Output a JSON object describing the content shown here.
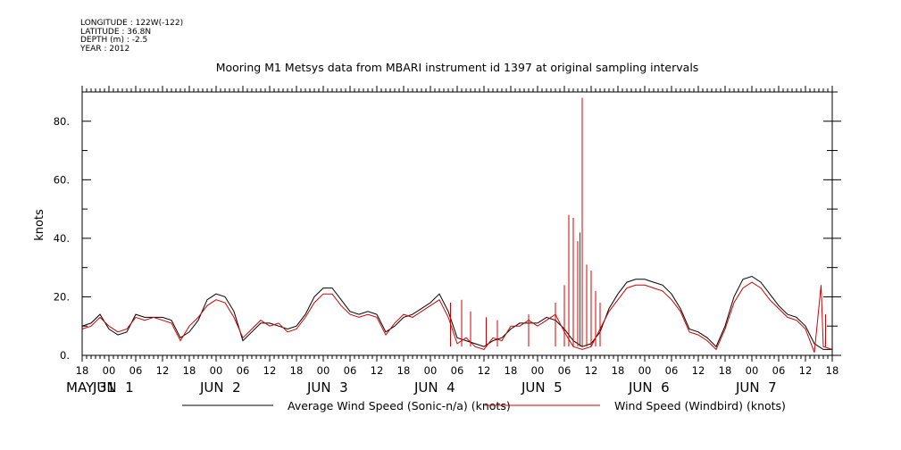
{
  "meta": {
    "longitude": "LONGITUDE : 122W(-122)",
    "latitude": "LATITUDE : 36.8N",
    "depth": "DEPTH (m) : -2.5",
    "year": "YEAR : 2012"
  },
  "chart_data": {
    "type": "line",
    "title": "Mooring M1 Metsys data from MBARI instrument id 1397 at original sampling intervals",
    "ylabel": "knots",
    "xlabel": "",
    "ylim": [
      0,
      90
    ],
    "y_ticks": [
      0,
      20,
      40,
      60,
      80
    ],
    "y_tick_labels": [
      "0.",
      "20.",
      "40.",
      "60.",
      "80."
    ],
    "x_range": [
      "2012-05-31T18:00",
      "2012-06-07T18:00"
    ],
    "hour_ticks": [
      {
        "t": "2012-05-31T18:00",
        "label": "18"
      },
      {
        "t": "2012-06-01T00:00",
        "label": "00"
      },
      {
        "t": "2012-06-01T06:00",
        "label": "06"
      },
      {
        "t": "2012-06-01T12:00",
        "label": "12"
      },
      {
        "t": "2012-06-01T18:00",
        "label": "18"
      },
      {
        "t": "2012-06-02T00:00",
        "label": "00"
      },
      {
        "t": "2012-06-02T06:00",
        "label": "06"
      },
      {
        "t": "2012-06-02T12:00",
        "label": "12"
      },
      {
        "t": "2012-06-02T18:00",
        "label": "18"
      },
      {
        "t": "2012-06-03T00:00",
        "label": "00"
      },
      {
        "t": "2012-06-03T06:00",
        "label": "06"
      },
      {
        "t": "2012-06-03T12:00",
        "label": "12"
      },
      {
        "t": "2012-06-03T18:00",
        "label": "18"
      },
      {
        "t": "2012-06-04T00:00",
        "label": "00"
      },
      {
        "t": "2012-06-04T06:00",
        "label": "06"
      },
      {
        "t": "2012-06-04T12:00",
        "label": "12"
      },
      {
        "t": "2012-06-04T18:00",
        "label": "18"
      },
      {
        "t": "2012-06-05T00:00",
        "label": "00"
      },
      {
        "t": "2012-06-05T06:00",
        "label": "06"
      },
      {
        "t": "2012-06-05T12:00",
        "label": "12"
      },
      {
        "t": "2012-06-05T18:00",
        "label": "18"
      },
      {
        "t": "2012-06-06T00:00",
        "label": "00"
      },
      {
        "t": "2012-06-06T06:00",
        "label": "06"
      },
      {
        "t": "2012-06-06T12:00",
        "label": "12"
      },
      {
        "t": "2012-06-06T18:00",
        "label": "18"
      },
      {
        "t": "2012-06-07T00:00",
        "label": "00"
      },
      {
        "t": "2012-06-07T06:00",
        "label": "06"
      },
      {
        "t": "2012-06-07T12:00",
        "label": "12"
      },
      {
        "t": "2012-06-07T18:00",
        "label": "18"
      }
    ],
    "day_labels": [
      {
        "t": "2012-05-31T18:00",
        "label": "MAY 31"
      },
      {
        "t": "2012-06-01T00:00",
        "label": "JUN  1"
      },
      {
        "t": "2012-06-02T00:00",
        "label": "JUN  2"
      },
      {
        "t": "2012-06-03T00:00",
        "label": "JUN  3"
      },
      {
        "t": "2012-06-04T00:00",
        "label": "JUN  4"
      },
      {
        "t": "2012-06-05T00:00",
        "label": "JUN  5"
      },
      {
        "t": "2012-06-06T00:00",
        "label": "JUN  6"
      },
      {
        "t": "2012-06-07T00:00",
        "label": "JUN  7"
      }
    ],
    "legend_placement": "bottom",
    "series": [
      {
        "name": "Average Wind Speed (Sonic-n/a) (knots)",
        "color": "#000000",
        "points": [
          [
            "2012-05-31T18:00",
            10
          ],
          [
            "2012-05-31T20:00",
            11
          ],
          [
            "2012-05-31T22:00",
            14
          ],
          [
            "2012-06-01T00:00",
            9
          ],
          [
            "2012-06-01T02:00",
            7
          ],
          [
            "2012-06-01T04:00",
            8
          ],
          [
            "2012-06-01T06:00",
            14
          ],
          [
            "2012-06-01T08:00",
            13
          ],
          [
            "2012-06-01T10:00",
            13
          ],
          [
            "2012-06-01T12:00",
            13
          ],
          [
            "2012-06-01T14:00",
            12
          ],
          [
            "2012-06-01T16:00",
            6
          ],
          [
            "2012-06-01T18:00",
            8
          ],
          [
            "2012-06-01T20:00",
            12
          ],
          [
            "2012-06-01T22:00",
            19
          ],
          [
            "2012-06-02T00:00",
            21
          ],
          [
            "2012-06-02T02:00",
            20
          ],
          [
            "2012-06-02T04:00",
            15
          ],
          [
            "2012-06-02T06:00",
            5
          ],
          [
            "2012-06-02T08:00",
            8
          ],
          [
            "2012-06-02T10:00",
            11
          ],
          [
            "2012-06-02T12:00",
            11
          ],
          [
            "2012-06-02T14:00",
            10
          ],
          [
            "2012-06-02T16:00",
            9
          ],
          [
            "2012-06-02T18:00",
            10
          ],
          [
            "2012-06-02T20:00",
            14
          ],
          [
            "2012-06-02T22:00",
            20
          ],
          [
            "2012-06-03T00:00",
            23
          ],
          [
            "2012-06-03T02:00",
            23
          ],
          [
            "2012-06-03T04:00",
            19
          ],
          [
            "2012-06-03T06:00",
            15
          ],
          [
            "2012-06-03T08:00",
            14
          ],
          [
            "2012-06-03T10:00",
            15
          ],
          [
            "2012-06-03T12:00",
            14
          ],
          [
            "2012-06-03T14:00",
            8
          ],
          [
            "2012-06-03T16:00",
            10
          ],
          [
            "2012-06-03T18:00",
            13
          ],
          [
            "2012-06-03T20:00",
            14
          ],
          [
            "2012-06-03T22:00",
            16
          ],
          [
            "2012-06-04T00:00",
            18
          ],
          [
            "2012-06-04T02:00",
            21
          ],
          [
            "2012-06-04T04:00",
            15
          ],
          [
            "2012-06-04T06:00",
            6
          ],
          [
            "2012-06-04T08:00",
            5
          ],
          [
            "2012-06-04T10:00",
            4
          ],
          [
            "2012-06-04T12:00",
            3
          ],
          [
            "2012-06-04T14:00",
            5
          ],
          [
            "2012-06-04T16:00",
            6
          ],
          [
            "2012-06-04T18:00",
            9
          ],
          [
            "2012-06-04T20:00",
            11
          ],
          [
            "2012-06-04T22:00",
            11
          ],
          [
            "2012-06-05T00:00",
            11
          ],
          [
            "2012-06-05T02:00",
            13
          ],
          [
            "2012-06-05T04:00",
            12
          ],
          [
            "2012-06-05T06:00",
            9
          ],
          [
            "2012-06-05T08:00",
            5
          ],
          [
            "2012-06-05T10:00",
            3
          ],
          [
            "2012-06-05T12:00",
            4
          ],
          [
            "2012-06-05T14:00",
            8
          ],
          [
            "2012-06-05T16:00",
            16
          ],
          [
            "2012-06-05T18:00",
            21
          ],
          [
            "2012-06-05T20:00",
            25
          ],
          [
            "2012-06-05T22:00",
            26
          ],
          [
            "2012-06-06T00:00",
            26
          ],
          [
            "2012-06-06T02:00",
            25
          ],
          [
            "2012-06-06T04:00",
            24
          ],
          [
            "2012-06-06T06:00",
            21
          ],
          [
            "2012-06-06T08:00",
            16
          ],
          [
            "2012-06-06T10:00",
            9
          ],
          [
            "2012-06-06T12:00",
            8
          ],
          [
            "2012-06-06T14:00",
            6
          ],
          [
            "2012-06-06T16:00",
            3
          ],
          [
            "2012-06-06T18:00",
            10
          ],
          [
            "2012-06-06T20:00",
            20
          ],
          [
            "2012-06-06T22:00",
            26
          ],
          [
            "2012-06-07T00:00",
            27
          ],
          [
            "2012-06-07T02:00",
            25
          ],
          [
            "2012-06-07T04:00",
            21
          ],
          [
            "2012-06-07T06:00",
            17
          ],
          [
            "2012-06-07T08:00",
            14
          ],
          [
            "2012-06-07T10:00",
            13
          ],
          [
            "2012-06-07T12:00",
            10
          ],
          [
            "2012-06-07T14:00",
            4
          ],
          [
            "2012-06-07T16:00",
            2
          ],
          [
            "2012-06-07T18:00",
            2
          ]
        ]
      },
      {
        "name": "Wind Speed (Windbird) (knots)",
        "color": "#d40000",
        "points": [
          [
            "2012-05-31T18:00",
            9
          ],
          [
            "2012-05-31T20:00",
            10
          ],
          [
            "2012-05-31T22:00",
            13
          ],
          [
            "2012-06-01T00:00",
            10
          ],
          [
            "2012-06-01T02:00",
            8
          ],
          [
            "2012-06-01T04:00",
            9
          ],
          [
            "2012-06-01T06:00",
            13
          ],
          [
            "2012-06-01T08:00",
            12
          ],
          [
            "2012-06-01T10:00",
            13
          ],
          [
            "2012-06-01T12:00",
            12
          ],
          [
            "2012-06-01T14:00",
            11
          ],
          [
            "2012-06-01T16:00",
            5
          ],
          [
            "2012-06-01T18:00",
            10
          ],
          [
            "2012-06-01T20:00",
            13
          ],
          [
            "2012-06-01T22:00",
            17
          ],
          [
            "2012-06-02T00:00",
            19
          ],
          [
            "2012-06-02T02:00",
            18
          ],
          [
            "2012-06-02T04:00",
            13
          ],
          [
            "2012-06-02T06:00",
            6
          ],
          [
            "2012-06-02T08:00",
            9
          ],
          [
            "2012-06-02T10:00",
            12
          ],
          [
            "2012-06-02T12:00",
            10
          ],
          [
            "2012-06-02T14:00",
            11
          ],
          [
            "2012-06-02T16:00",
            8
          ],
          [
            "2012-06-02T18:00",
            9
          ],
          [
            "2012-06-02T20:00",
            13
          ],
          [
            "2012-06-02T22:00",
            18
          ],
          [
            "2012-06-03T00:00",
            21
          ],
          [
            "2012-06-03T02:00",
            21
          ],
          [
            "2012-06-03T04:00",
            17
          ],
          [
            "2012-06-03T06:00",
            14
          ],
          [
            "2012-06-03T08:00",
            13
          ],
          [
            "2012-06-03T10:00",
            14
          ],
          [
            "2012-06-03T12:00",
            13
          ],
          [
            "2012-06-03T14:00",
            7
          ],
          [
            "2012-06-03T16:00",
            11
          ],
          [
            "2012-06-03T18:00",
            14
          ],
          [
            "2012-06-03T20:00",
            13
          ],
          [
            "2012-06-03T22:00",
            15
          ],
          [
            "2012-06-04T00:00",
            17
          ],
          [
            "2012-06-04T02:00",
            19
          ],
          [
            "2012-06-04T04:00",
            13
          ],
          [
            "2012-06-04T06:00",
            4
          ],
          [
            "2012-06-04T08:00",
            6
          ],
          [
            "2012-06-04T10:00",
            3
          ],
          [
            "2012-06-04T12:00",
            2
          ],
          [
            "2012-06-04T14:00",
            6
          ],
          [
            "2012-06-04T16:00",
            5
          ],
          [
            "2012-06-04T18:00",
            10
          ],
          [
            "2012-06-04T20:00",
            10
          ],
          [
            "2012-06-04T22:00",
            12
          ],
          [
            "2012-06-05T00:00",
            10
          ],
          [
            "2012-06-05T02:00",
            12
          ],
          [
            "2012-06-05T04:00",
            14
          ],
          [
            "2012-06-05T06:00",
            8
          ],
          [
            "2012-06-05T08:00",
            3
          ],
          [
            "2012-06-05T10:00",
            2
          ],
          [
            "2012-06-05T12:00",
            3
          ],
          [
            "2012-06-05T14:00",
            9
          ],
          [
            "2012-06-05T16:00",
            15
          ],
          [
            "2012-06-05T18:00",
            19
          ],
          [
            "2012-06-05T20:00",
            23
          ],
          [
            "2012-06-05T22:00",
            24
          ],
          [
            "2012-06-06T00:00",
            24
          ],
          [
            "2012-06-06T02:00",
            23
          ],
          [
            "2012-06-06T04:00",
            22
          ],
          [
            "2012-06-06T06:00",
            19
          ],
          [
            "2012-06-06T08:00",
            15
          ],
          [
            "2012-06-06T10:00",
            8
          ],
          [
            "2012-06-06T12:00",
            7
          ],
          [
            "2012-06-06T14:00",
            5
          ],
          [
            "2012-06-06T16:00",
            2
          ],
          [
            "2012-06-06T18:00",
            9
          ],
          [
            "2012-06-06T20:00",
            18
          ],
          [
            "2012-06-06T22:00",
            23
          ],
          [
            "2012-06-07T00:00",
            25
          ],
          [
            "2012-06-07T02:00",
            23
          ],
          [
            "2012-06-07T04:00",
            19
          ],
          [
            "2012-06-07T06:00",
            16
          ],
          [
            "2012-06-07T08:00",
            13
          ],
          [
            "2012-06-07T10:00",
            12
          ],
          [
            "2012-06-07T12:00",
            9
          ],
          [
            "2012-06-07T14:00",
            1
          ],
          [
            "2012-06-07T15:30",
            24
          ],
          [
            "2012-06-07T16:00",
            3
          ],
          [
            "2012-06-07T18:00",
            2
          ]
        ],
        "spikes": [
          [
            "2012-06-04T04:30",
            18
          ],
          [
            "2012-06-04T07:00",
            19
          ],
          [
            "2012-06-04T09:00",
            15
          ],
          [
            "2012-06-04T12:30",
            13
          ],
          [
            "2012-06-04T15:00",
            12
          ],
          [
            "2012-06-04T22:00",
            14
          ],
          [
            "2012-06-05T04:00",
            18
          ],
          [
            "2012-06-05T06:00",
            24
          ],
          [
            "2012-06-05T07:00",
            48
          ],
          [
            "2012-06-05T08:00",
            47
          ],
          [
            "2012-06-05T09:00",
            39
          ],
          [
            "2012-06-05T09:30",
            42
          ],
          [
            "2012-06-05T10:00",
            88
          ],
          [
            "2012-06-05T11:00",
            31
          ],
          [
            "2012-06-05T12:00",
            29
          ],
          [
            "2012-06-05T13:00",
            22
          ],
          [
            "2012-06-05T14:00",
            18
          ],
          [
            "2012-06-07T16:30",
            14
          ]
        ]
      }
    ]
  }
}
